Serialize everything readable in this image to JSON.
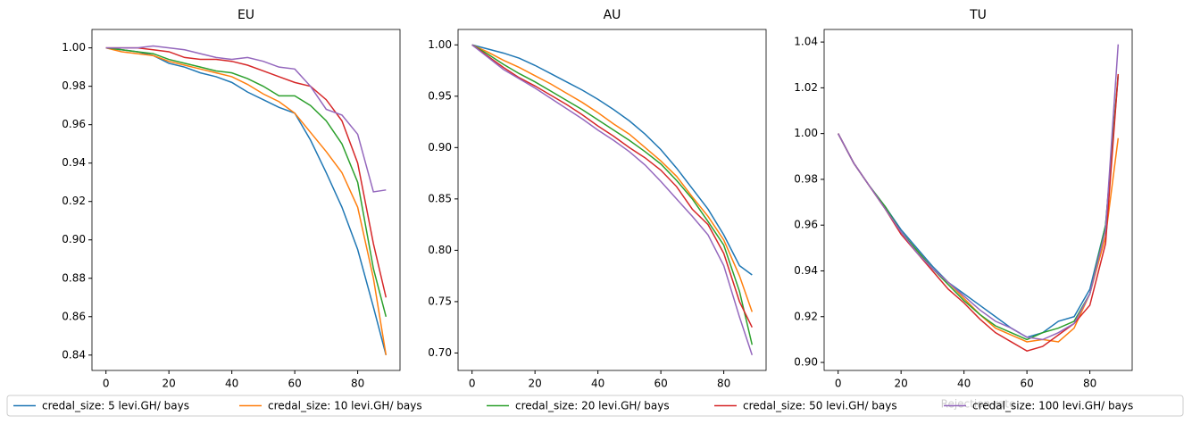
{
  "chart_data": [
    {
      "type": "line",
      "title": "EU",
      "x": [
        0,
        5,
        10,
        15,
        20,
        25,
        30,
        35,
        40,
        45,
        50,
        55,
        60,
        65,
        70,
        75,
        80,
        85,
        89
      ],
      "xlim": [
        -4.45,
        93.45
      ],
      "xticks": [
        0,
        20,
        40,
        60,
        80
      ],
      "ylim": [
        0.832,
        1.0096
      ],
      "yticks": [
        0.84,
        0.86,
        0.88,
        {
          "value": 0.9,
          "label": "0.90"
        },
        0.92,
        0.94,
        0.96,
        0.98,
        {
          "value": 1,
          "label": "1.00"
        }
      ],
      "series": [
        {
          "name": "credal_size: 5 levi.GH/ bays",
          "color": "#1f77b4",
          "values": [
            1.0,
            0.999,
            0.998,
            0.996,
            0.992,
            0.99,
            0.987,
            0.985,
            0.982,
            0.977,
            0.973,
            0.969,
            0.966,
            0.952,
            0.935,
            0.917,
            0.895,
            0.865,
            0.84
          ]
        },
        {
          "name": "credal_size: 10 levi.GH/ bays",
          "color": "#ff7f0e",
          "values": [
            1.0,
            0.998,
            0.997,
            0.996,
            0.993,
            0.991,
            0.989,
            0.987,
            0.985,
            0.981,
            0.976,
            0.972,
            0.966,
            0.956,
            0.946,
            0.935,
            0.917,
            0.88,
            0.84
          ]
        },
        {
          "name": "credal_size: 20 levi.GH/ bays",
          "color": "#2ca02c",
          "values": [
            1.0,
            0.999,
            0.998,
            0.997,
            0.994,
            0.992,
            0.99,
            0.988,
            0.987,
            0.984,
            0.98,
            0.975,
            0.975,
            0.97,
            0.962,
            0.95,
            0.93,
            0.885,
            0.86
          ]
        },
        {
          "name": "credal_size: 50 levi.GH/ bays",
          "color": "#d62728",
          "values": [
            1.0,
            1.0,
            1.0,
            0.999,
            0.998,
            0.995,
            0.994,
            0.994,
            0.993,
            0.991,
            0.988,
            0.985,
            0.982,
            0.98,
            0.973,
            0.962,
            0.94,
            0.898,
            0.87
          ]
        },
        {
          "name": "credal_size: 100 levi.GH/ bays",
          "color": "#9467bd",
          "values": [
            1.0,
            1.0,
            1.0,
            1.001,
            1.0,
            0.999,
            0.997,
            0.995,
            0.994,
            0.995,
            0.993,
            0.99,
            0.989,
            0.98,
            0.968,
            0.965,
            0.955,
            0.925,
            0.926
          ]
        }
      ]
    },
    {
      "type": "line",
      "title": "AU",
      "x": [
        0,
        5,
        10,
        15,
        20,
        25,
        30,
        35,
        40,
        45,
        50,
        55,
        60,
        65,
        70,
        75,
        80,
        85,
        89
      ],
      "xlim": [
        -4.45,
        93.45
      ],
      "xticks": [
        0,
        20,
        40,
        60,
        80
      ],
      "ylim": [
        0.683,
        1.015
      ],
      "yticks": [
        {
          "value": 0.7,
          "label": "0.70"
        },
        0.75,
        {
          "value": 0.8,
          "label": "0.80"
        },
        0.85,
        {
          "value": 0.9,
          "label": "0.90"
        },
        0.95,
        {
          "value": 1,
          "label": "1.00"
        }
      ],
      "series": [
        {
          "color": "#1f77b4",
          "values": [
            1.0,
            0.996,
            0.992,
            0.987,
            0.98,
            0.972,
            0.964,
            0.956,
            0.947,
            0.937,
            0.926,
            0.913,
            0.898,
            0.88,
            0.86,
            0.84,
            0.815,
            0.785,
            0.776
          ]
        },
        {
          "color": "#ff7f0e",
          "values": [
            1.0,
            0.993,
            0.985,
            0.978,
            0.97,
            0.962,
            0.953,
            0.944,
            0.934,
            0.923,
            0.913,
            0.9,
            0.887,
            0.872,
            0.852,
            0.833,
            0.81,
            0.775,
            0.74
          ]
        },
        {
          "color": "#2ca02c",
          "values": [
            1.0,
            0.991,
            0.981,
            0.972,
            0.964,
            0.955,
            0.946,
            0.937,
            0.927,
            0.917,
            0.907,
            0.896,
            0.884,
            0.868,
            0.85,
            0.828,
            0.805,
            0.76,
            0.708
          ]
        },
        {
          "color": "#d62728",
          "values": [
            1.0,
            0.989,
            0.978,
            0.968,
            0.96,
            0.951,
            0.942,
            0.932,
            0.921,
            0.911,
            0.9,
            0.89,
            0.878,
            0.862,
            0.84,
            0.825,
            0.797,
            0.75,
            0.725
          ]
        },
        {
          "color": "#9467bd",
          "values": [
            1.0,
            0.988,
            0.976,
            0.967,
            0.958,
            0.948,
            0.938,
            0.928,
            0.917,
            0.907,
            0.896,
            0.883,
            0.867,
            0.85,
            0.833,
            0.815,
            0.785,
            0.735,
            0.698
          ]
        }
      ]
    },
    {
      "type": "line",
      "title": "TU",
      "xlabel": "Rejection rate",
      "x": [
        0,
        5,
        10,
        15,
        20,
        25,
        30,
        35,
        40,
        45,
        50,
        55,
        60,
        65,
        70,
        75,
        80,
        85,
        89
      ],
      "xlim": [
        -4.45,
        93.45
      ],
      "xticks": [
        0,
        20,
        40,
        60,
        80
      ],
      "ylim": [
        0.8965,
        1.0455
      ],
      "yticks": [
        {
          "value": 0.9,
          "label": "0.90"
        },
        0.92,
        0.94,
        0.96,
        0.98,
        {
          "value": 1,
          "label": "1.00"
        },
        1.02,
        1.04
      ],
      "series": [
        {
          "color": "#1f77b4",
          "values": [
            1.0,
            0.987,
            0.977,
            0.968,
            0.958,
            0.95,
            0.942,
            0.935,
            0.93,
            0.925,
            0.92,
            0.915,
            0.911,
            0.913,
            0.918,
            0.92,
            0.932,
            0.96,
            1.025
          ]
        },
        {
          "color": "#ff7f0e",
          "values": [
            1.0,
            0.987,
            0.977,
            0.967,
            0.957,
            0.949,
            0.941,
            0.935,
            0.928,
            0.921,
            0.915,
            0.912,
            0.909,
            0.91,
            0.909,
            0.915,
            0.93,
            0.955,
            0.998
          ]
        },
        {
          "color": "#2ca02c",
          "values": [
            1.0,
            0.987,
            0.977,
            0.968,
            0.957,
            0.949,
            0.941,
            0.934,
            0.927,
            0.921,
            0.916,
            0.913,
            0.91,
            0.913,
            0.915,
            0.918,
            0.93,
            0.96,
            1.026
          ]
        },
        {
          "color": "#d62728",
          "values": [
            1.0,
            0.987,
            0.977,
            0.967,
            0.956,
            0.948,
            0.94,
            0.932,
            0.926,
            0.919,
            0.913,
            0.909,
            0.905,
            0.907,
            0.912,
            0.917,
            0.925,
            0.952,
            1.026
          ]
        },
        {
          "color": "#9467bd",
          "values": [
            1.0,
            0.987,
            0.977,
            0.967,
            0.957,
            0.948,
            0.941,
            0.935,
            0.929,
            0.923,
            0.918,
            0.915,
            0.911,
            0.91,
            0.913,
            0.917,
            0.93,
            0.958,
            1.039
          ]
        }
      ]
    }
  ]
}
